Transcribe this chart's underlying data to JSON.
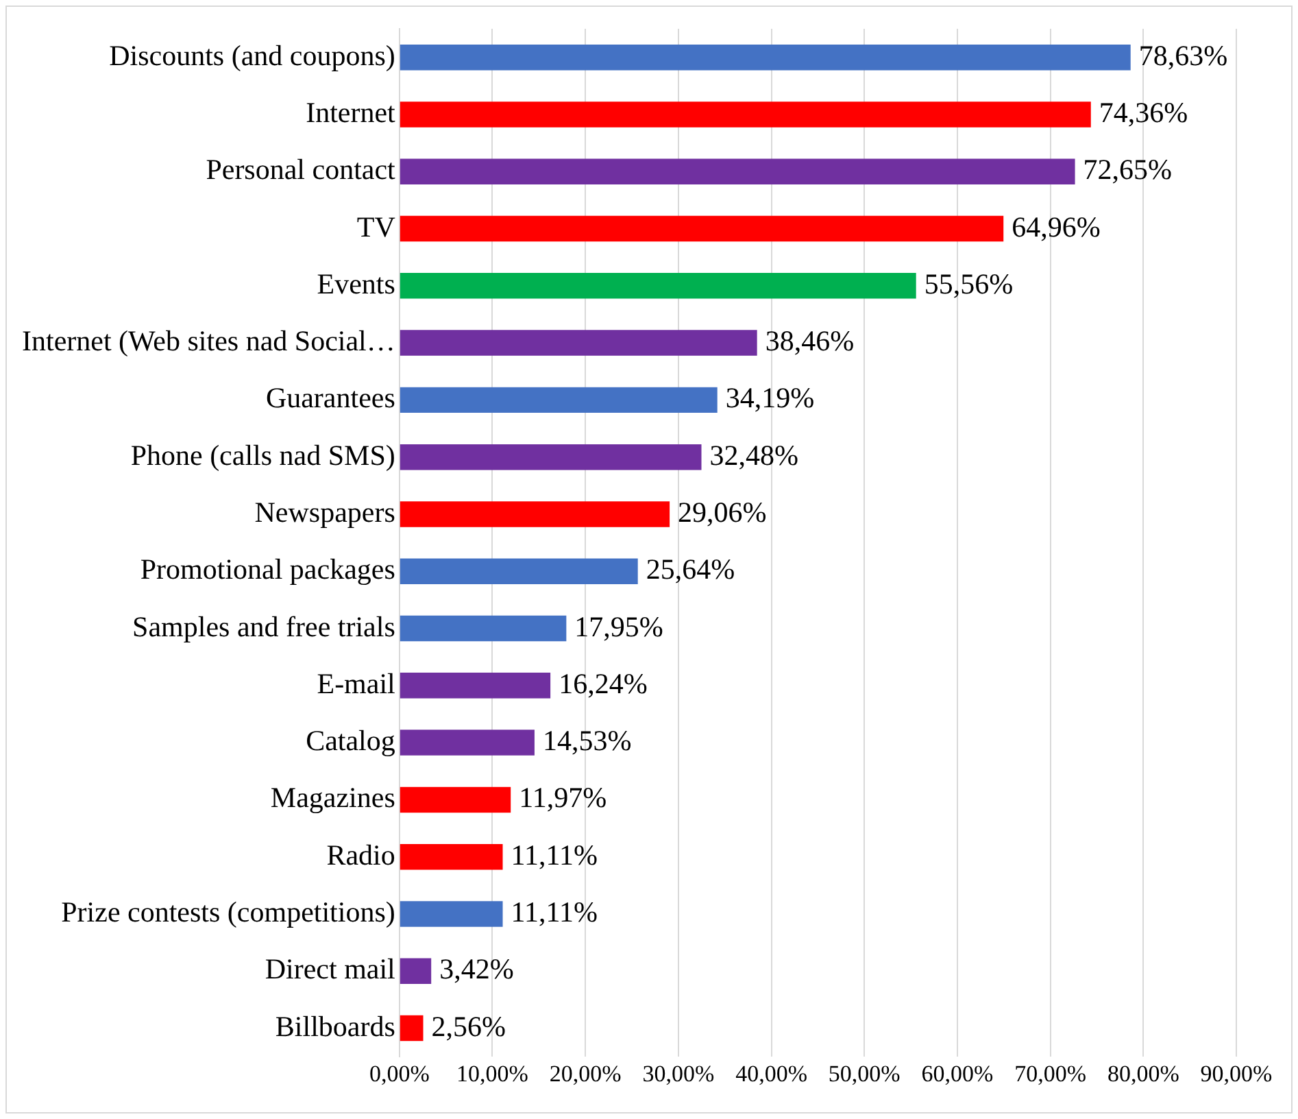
{
  "chart_data": {
    "type": "bar",
    "orientation": "horizontal",
    "categories": [
      "Discounts (and coupons)",
      "Internet",
      "Personal contact",
      "TV",
      "Events",
      "Internet (Web sites nad Social…",
      "Guarantees",
      "Phone (calls nad SMS)",
      "Newspapers",
      "Promotional packages",
      "Samples and free trials",
      "E-mail",
      "Catalog",
      "Magazines",
      "Radio",
      "Prize contests (competitions)",
      "Direct mail",
      "Billboards"
    ],
    "values": [
      78.63,
      74.36,
      72.65,
      64.96,
      55.56,
      38.46,
      34.19,
      32.48,
      29.06,
      25.64,
      17.95,
      16.24,
      14.53,
      11.97,
      11.11,
      11.11,
      3.42,
      2.56
    ],
    "colors": [
      "#4472c4",
      "#ff0000",
      "#7030a0",
      "#ff0000",
      "#00b050",
      "#7030a0",
      "#4472c4",
      "#7030a0",
      "#ff0000",
      "#4472c4",
      "#4472c4",
      "#7030a0",
      "#7030a0",
      "#ff0000",
      "#ff0000",
      "#4472c4",
      "#7030a0",
      "#ff0000"
    ],
    "value_labels": [
      "78,63%",
      "74,36%",
      "72,65%",
      "64,96%",
      "55,56%",
      "38,46%",
      "34,19%",
      "32,48%",
      "29,06%",
      "25,64%",
      "17,95%",
      "16,24%",
      "14,53%",
      "11,97%",
      "11,11%",
      "11,11%",
      "3,42%",
      "2,56%"
    ],
    "xlim": [
      0,
      90
    ],
    "xticks": [
      {
        "value": 0,
        "label": "0,00%"
      },
      {
        "value": 10,
        "label": "10,00%"
      },
      {
        "value": 20,
        "label": "20,00%"
      },
      {
        "value": 30,
        "label": "30,00%"
      },
      {
        "value": 40,
        "label": "40,00%"
      },
      {
        "value": 50,
        "label": "50,00%"
      },
      {
        "value": 60,
        "label": "60,00%"
      },
      {
        "value": 70,
        "label": "70,00%"
      },
      {
        "value": 80,
        "label": "80,00%"
      },
      {
        "value": 90,
        "label": "90,00%"
      }
    ],
    "grid": "x",
    "legend": false
  }
}
